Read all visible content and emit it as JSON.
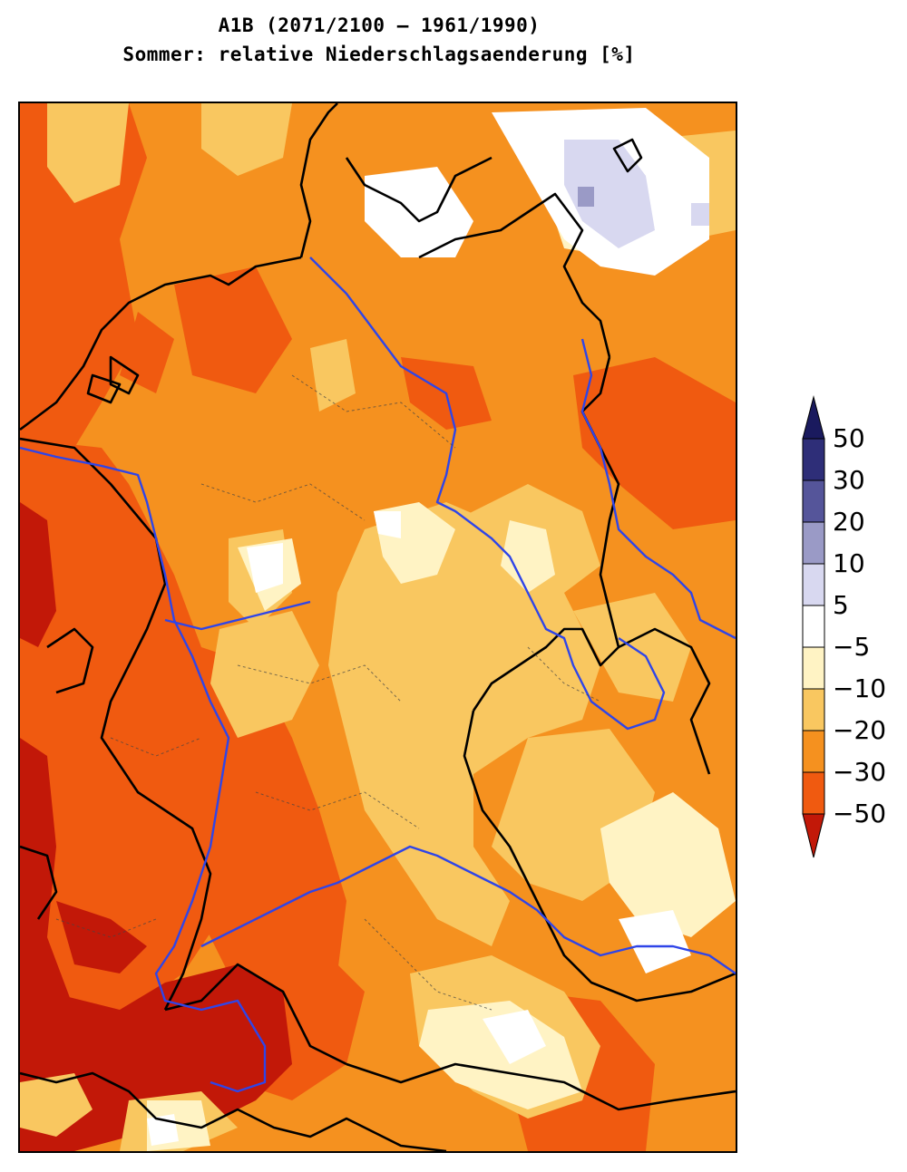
{
  "title": {
    "line1": "A1B (2071/2100 – 1961/1990)",
    "line2": "Sommer: relative Niederschlagsaenderung [%]"
  },
  "legend": {
    "tick_labels": [
      "50",
      "30",
      "20",
      "10",
      "5",
      "−5",
      "−10",
      "−20",
      "−30",
      "−50"
    ],
    "classes": [
      {
        "range": "> 50",
        "color": "#1a1a5e"
      },
      {
        "range": "30 to 50",
        "color": "#2e2e78"
      },
      {
        "range": "20 to 30",
        "color": "#55559a"
      },
      {
        "range": "10 to 20",
        "color": "#9a9ac6"
      },
      {
        "range": "5 to 10",
        "color": "#d8d8f0"
      },
      {
        "range": "-5 to 5",
        "color": "#ffffff"
      },
      {
        "range": "-10 to -5",
        "color": "#fff3c4"
      },
      {
        "range": "-20 to -10",
        "color": "#f9c760"
      },
      {
        "range": "-30 to -20",
        "color": "#f5911f"
      },
      {
        "range": "-50 to -30",
        "color": "#f05a10"
      },
      {
        "range": "< -50",
        "color": "#c21808"
      }
    ]
  },
  "map": {
    "river_color": "#2f45e8",
    "border_color": "#000000"
  }
}
